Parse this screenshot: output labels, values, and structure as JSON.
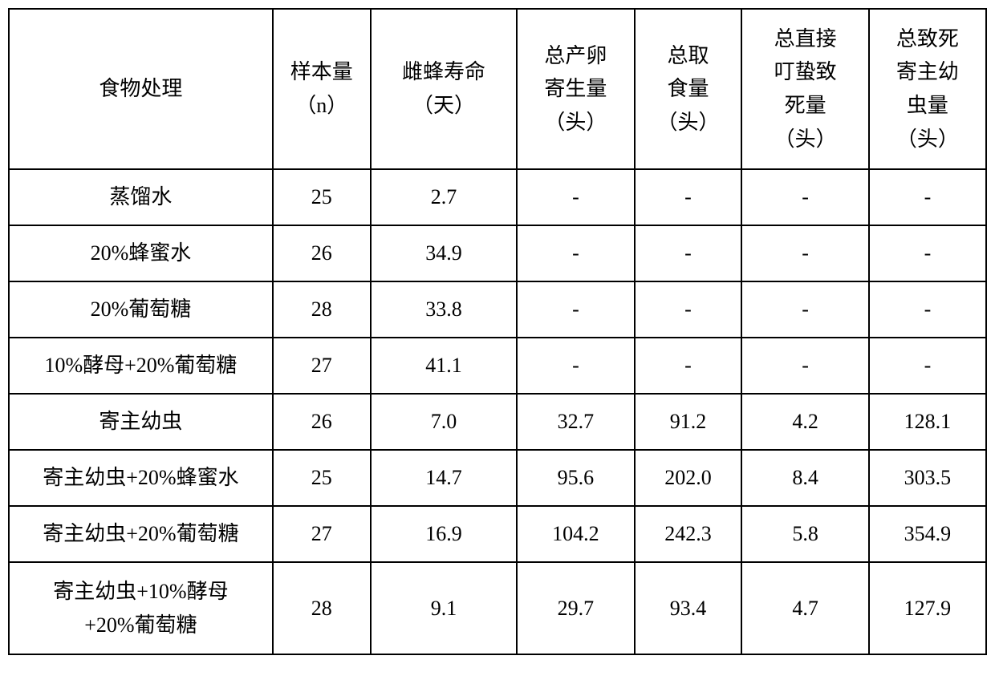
{
  "table": {
    "type": "table",
    "background_color": "#ffffff",
    "border_color": "#000000",
    "text_color": "#000000",
    "font_family": "SimSun",
    "header_fontsize": 26,
    "cell_fontsize": 26,
    "column_widths_percent": [
      27,
      10,
      15,
      12,
      11,
      13,
      12
    ],
    "columns": [
      {
        "label": "食物处理",
        "align": "center"
      },
      {
        "label": "样本量\n（n）",
        "align": "center"
      },
      {
        "label": "雌蜂寿命\n（天）",
        "align": "center"
      },
      {
        "label": "总产卵\n寄生量\n（头）",
        "align": "center"
      },
      {
        "label": "总取\n食量\n（头）",
        "align": "center"
      },
      {
        "label": "总直接\n叮蛰致\n死量\n（头）",
        "align": "center"
      },
      {
        "label": "总致死\n寄主幼\n虫量\n（头）",
        "align": "center"
      }
    ],
    "rows": [
      [
        "蒸馏水",
        "25",
        "2.7",
        "-",
        "-",
        "-",
        "-"
      ],
      [
        "20%蜂蜜水",
        "26",
        "34.9",
        "-",
        "-",
        "-",
        "-"
      ],
      [
        "20%葡萄糖",
        "28",
        "33.8",
        "-",
        "-",
        "-",
        "-"
      ],
      [
        "10%酵母+20%葡萄糖",
        "27",
        "41.1",
        "-",
        "-",
        "-",
        "-"
      ],
      [
        "寄主幼虫",
        "26",
        "7.0",
        "32.7",
        "91.2",
        "4.2",
        "128.1"
      ],
      [
        "寄主幼虫+20%蜂蜜水",
        "25",
        "14.7",
        "95.6",
        "202.0",
        "8.4",
        "303.5"
      ],
      [
        "寄主幼虫+20%葡萄糖",
        "27",
        "16.9",
        "104.2",
        "242.3",
        "5.8",
        "354.9"
      ],
      [
        "寄主幼虫+10%酵母\n+20%葡萄糖",
        "28",
        "9.1",
        "29.7",
        "93.4",
        "4.7",
        "127.9"
      ]
    ],
    "tall_rows": [
      7
    ]
  }
}
